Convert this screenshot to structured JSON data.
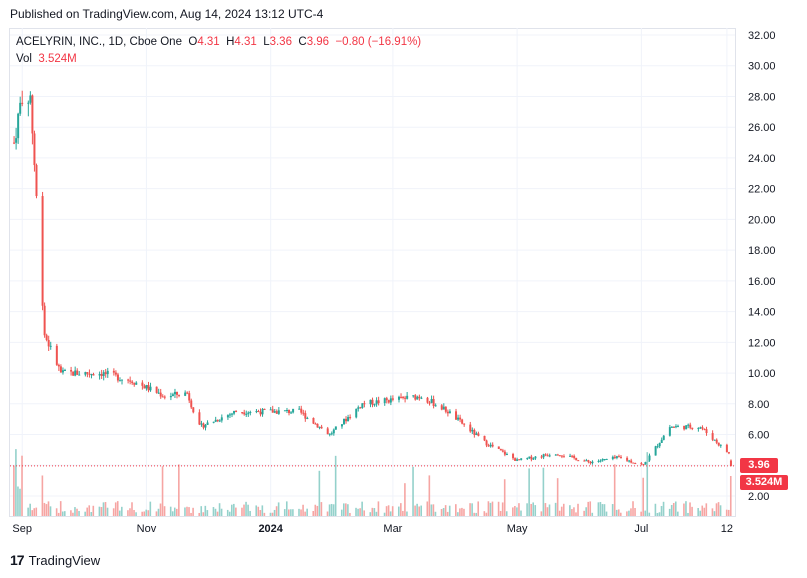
{
  "header": {
    "published": "Published on TradingView.com, Aug 14, 2024 13:12 UTC-4"
  },
  "legend": {
    "symbol": "ACELYRIN, INC., 1D, Cboe One",
    "open_label": "O",
    "open": "4.31",
    "high_label": "H",
    "high": "4.31",
    "low_label": "L",
    "low": "3.36",
    "close_label": "C",
    "close": "3.96",
    "change": "−0.80 (−16.91%)",
    "vol_label": "Vol",
    "vol": "3.524M"
  },
  "tags": {
    "price": "3.96",
    "volume": "3.524M"
  },
  "footer": {
    "brand": "TradingView",
    "logo_icon": "tradingview-logo-icon"
  },
  "colors": {
    "up": "#26a69a",
    "down": "#ef5350",
    "up_vol": "#94d1cb",
    "down_vol": "#f6a5a3",
    "last": "#f23645"
  },
  "chart_data": {
    "type": "candlestick",
    "title": "ACELYRIN, INC., 1D, Cboe One",
    "y_axis": {
      "min": 2.0,
      "max": 32.0,
      "ticks": [
        "32.00",
        "30.00",
        "28.00",
        "26.00",
        "24.00",
        "22.00",
        "20.00",
        "18.00",
        "16.00",
        "14.00",
        "12.00",
        "10.00",
        "8.00",
        "6.00",
        "4.00",
        "2.00"
      ]
    },
    "x_axis": {
      "ticks": [
        "Sep",
        "Nov",
        "2024",
        "Mar",
        "May",
        "Jul",
        "12"
      ]
    },
    "last_close": 3.96,
    "approx_close_path": [
      {
        "date": "2023-08-28",
        "close": 25.0
      },
      {
        "date": "2023-08-31",
        "close": 27.5
      },
      {
        "date": "2023-09-05",
        "close": 28.0
      },
      {
        "date": "2023-09-12",
        "close": 12.5
      },
      {
        "date": "2023-09-20",
        "close": 10.0
      },
      {
        "date": "2023-10-10",
        "close": 10.0
      },
      {
        "date": "2023-10-25",
        "close": 9.5
      },
      {
        "date": "2023-11-10",
        "close": 8.5
      },
      {
        "date": "2023-11-21",
        "close": 8.7
      },
      {
        "date": "2023-11-27",
        "close": 6.5
      },
      {
        "date": "2023-12-15",
        "close": 7.5
      },
      {
        "date": "2024-01-15",
        "close": 7.5
      },
      {
        "date": "2024-01-30",
        "close": 6.0
      },
      {
        "date": "2024-02-15",
        "close": 8.0
      },
      {
        "date": "2024-03-15",
        "close": 8.5
      },
      {
        "date": "2024-03-28",
        "close": 7.5
      },
      {
        "date": "2024-04-15",
        "close": 5.5
      },
      {
        "date": "2024-05-01",
        "close": 4.3
      },
      {
        "date": "2024-05-20",
        "close": 4.8
      },
      {
        "date": "2024-06-05",
        "close": 4.2
      },
      {
        "date": "2024-06-20",
        "close": 4.5
      },
      {
        "date": "2024-07-02",
        "close": 4.0
      },
      {
        "date": "2024-07-15",
        "close": 6.5
      },
      {
        "date": "2024-07-30",
        "close": 6.5
      },
      {
        "date": "2024-08-13",
        "close": 4.76
      },
      {
        "date": "2024-08-14",
        "close": 3.96
      }
    ]
  }
}
